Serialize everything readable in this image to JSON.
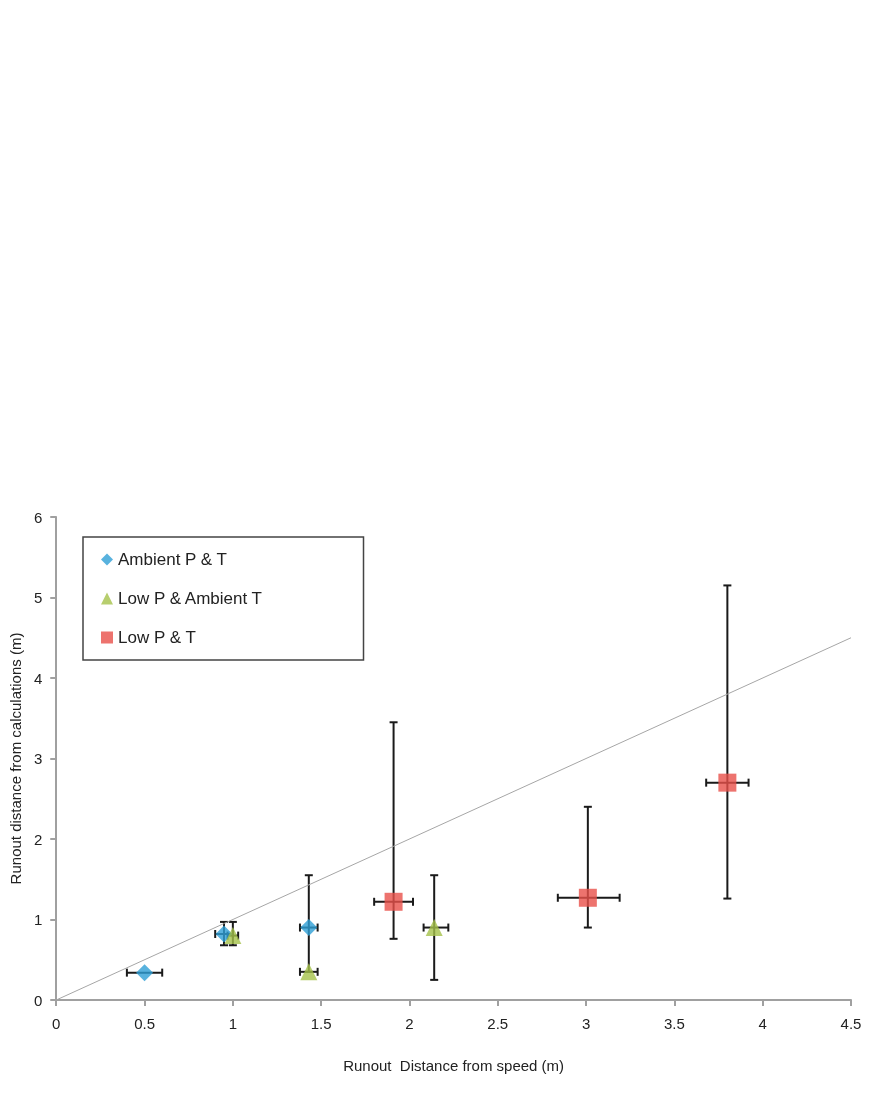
{
  "chart_data": {
    "type": "scatter",
    "xlabel": "Runout  Distance from speed (m)",
    "ylabel": "Runout distance from calculations (m)",
    "xlim": [
      0,
      4.5
    ],
    "xticks": [
      0,
      0.5,
      1,
      1.5,
      2,
      2.5,
      3,
      3.5,
      4,
      4.5
    ],
    "ylim": [
      0,
      6
    ],
    "yticks": [
      0,
      1,
      2,
      3,
      4,
      5,
      6
    ],
    "grid": false,
    "legend": "top left",
    "series": [
      {
        "name": "Ambient P & T",
        "color": "#2e9fd6",
        "marker": "diamond",
        "x": [
          0.5,
          0.95,
          1.43
        ],
        "values": [
          0.34,
          0.82,
          0.9
        ],
        "errors": [
          null,
          [
            0.68,
            0.97
          ],
          [
            0.35,
            1.55
          ]
        ],
        "xerrors": [
          [
            0.4,
            0.6
          ],
          [
            0.9,
            1.0
          ],
          [
            1.38,
            1.48
          ]
        ]
      },
      {
        "name": "Low P & Ambient T",
        "color": "#a5c24a",
        "marker": "triangle",
        "x": [
          1.0,
          1.43,
          2.14
        ],
        "values": [
          0.8,
          0.35,
          0.9
        ],
        "errors": [
          [
            0.68,
            0.97
          ],
          null,
          [
            0.25,
            1.55
          ]
        ],
        "xerrors": [
          [
            0.97,
            1.03
          ],
          [
            1.38,
            1.48
          ],
          [
            2.08,
            2.22
          ]
        ]
      },
      {
        "name": "Low P & T",
        "color": "#e8504a",
        "marker": "square",
        "x": [
          1.91,
          3.01,
          3.8
        ],
        "values": [
          1.22,
          1.27,
          2.7
        ],
        "errors": [
          [
            0.76,
            3.45
          ],
          [
            0.9,
            2.4
          ],
          [
            1.26,
            5.15
          ]
        ],
        "xerrors": [
          [
            1.8,
            2.02
          ],
          [
            2.84,
            3.19
          ],
          [
            3.68,
            3.92
          ]
        ]
      },
      {
        "type": "line",
        "color": "#a6a6a6",
        "marker": "none",
        "x": [
          0,
          4.5
        ],
        "values": [
          0,
          4.5
        ]
      }
    ]
  }
}
